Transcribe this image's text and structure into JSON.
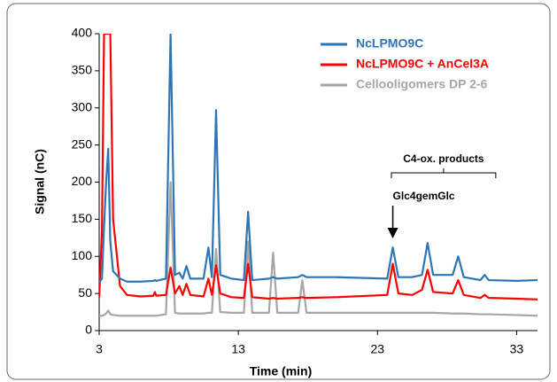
{
  "chart_data": {
    "type": "line",
    "x_label": "Time (min)",
    "y_label": "Signal (nC)",
    "xlim": [
      3,
      34.5
    ],
    "xticks": [
      3,
      13,
      23,
      33
    ],
    "ylim": [
      0,
      400
    ],
    "yticks": [
      0,
      50,
      100,
      150,
      200,
      250,
      300,
      350,
      400
    ],
    "grid": false,
    "legend": "upper right",
    "annotations": [
      "C4-ox. products",
      "Glc4gemGlc"
    ],
    "x": [
      3.0,
      3.2,
      3.35,
      3.5,
      3.65,
      3.8,
      4.0,
      4.5,
      5,
      6,
      6.9,
      7.0,
      7.1,
      7.8,
      8.13,
      8.45,
      8.76,
      9.0,
      9.27,
      9.55,
      10.5,
      10.85,
      11.1,
      11.4,
      11.7,
      12.5,
      13.4,
      13.7,
      14.0,
      15.2,
      15.5,
      15.8,
      17.3,
      17.6,
      17.9,
      20,
      23.7,
      24.1,
      24.5,
      25.5,
      26.2,
      26.6,
      27.0,
      28.4,
      28.8,
      29.2,
      30.4,
      30.7,
      31.0,
      33,
      34.5
    ],
    "series": [
      {
        "name": "NcLPMO9C",
        "color": "#2e75b6",
        "values": [
          65,
          70,
          140,
          200,
          245,
          120,
          80,
          70,
          66,
          66,
          67,
          68,
          67,
          70,
          400,
          75,
          78,
          70,
          87,
          70,
          70,
          112,
          72,
          297,
          75,
          70,
          68,
          160,
          68,
          70,
          72,
          70,
          72,
          75,
          72,
          72,
          70,
          112,
          72,
          72,
          75,
          118,
          75,
          75,
          100,
          72,
          68,
          75,
          68,
          67,
          68
        ]
      },
      {
        "name": "NcLPMO9C + AnCel3A",
        "color": "#ff0000",
        "values": [
          45,
          135,
          400,
          400,
          400,
          400,
          150,
          60,
          48,
          46,
          47,
          52,
          47,
          48,
          85,
          50,
          60,
          48,
          63,
          48,
          46,
          70,
          48,
          88,
          50,
          45,
          44,
          90,
          45,
          43,
          44,
          43,
          44,
          45,
          44,
          45,
          48,
          90,
          50,
          48,
          55,
          82,
          52,
          50,
          68,
          48,
          44,
          48,
          44,
          43,
          42
        ]
      },
      {
        "name": "Cellooligomers DP 2-6",
        "color": "#a6a6a6",
        "values": [
          20,
          20,
          21,
          23,
          27,
          22,
          21,
          20,
          20,
          20,
          20,
          20,
          20,
          22,
          200,
          24,
          23,
          23,
          23,
          23,
          23,
          24,
          24,
          110,
          25,
          24,
          24,
          120,
          24,
          24,
          105,
          24,
          24,
          68,
          24,
          24,
          24,
          24,
          24,
          24,
          24,
          24,
          24,
          23,
          23,
          23,
          22,
          22,
          22,
          21,
          20
        ]
      }
    ]
  }
}
